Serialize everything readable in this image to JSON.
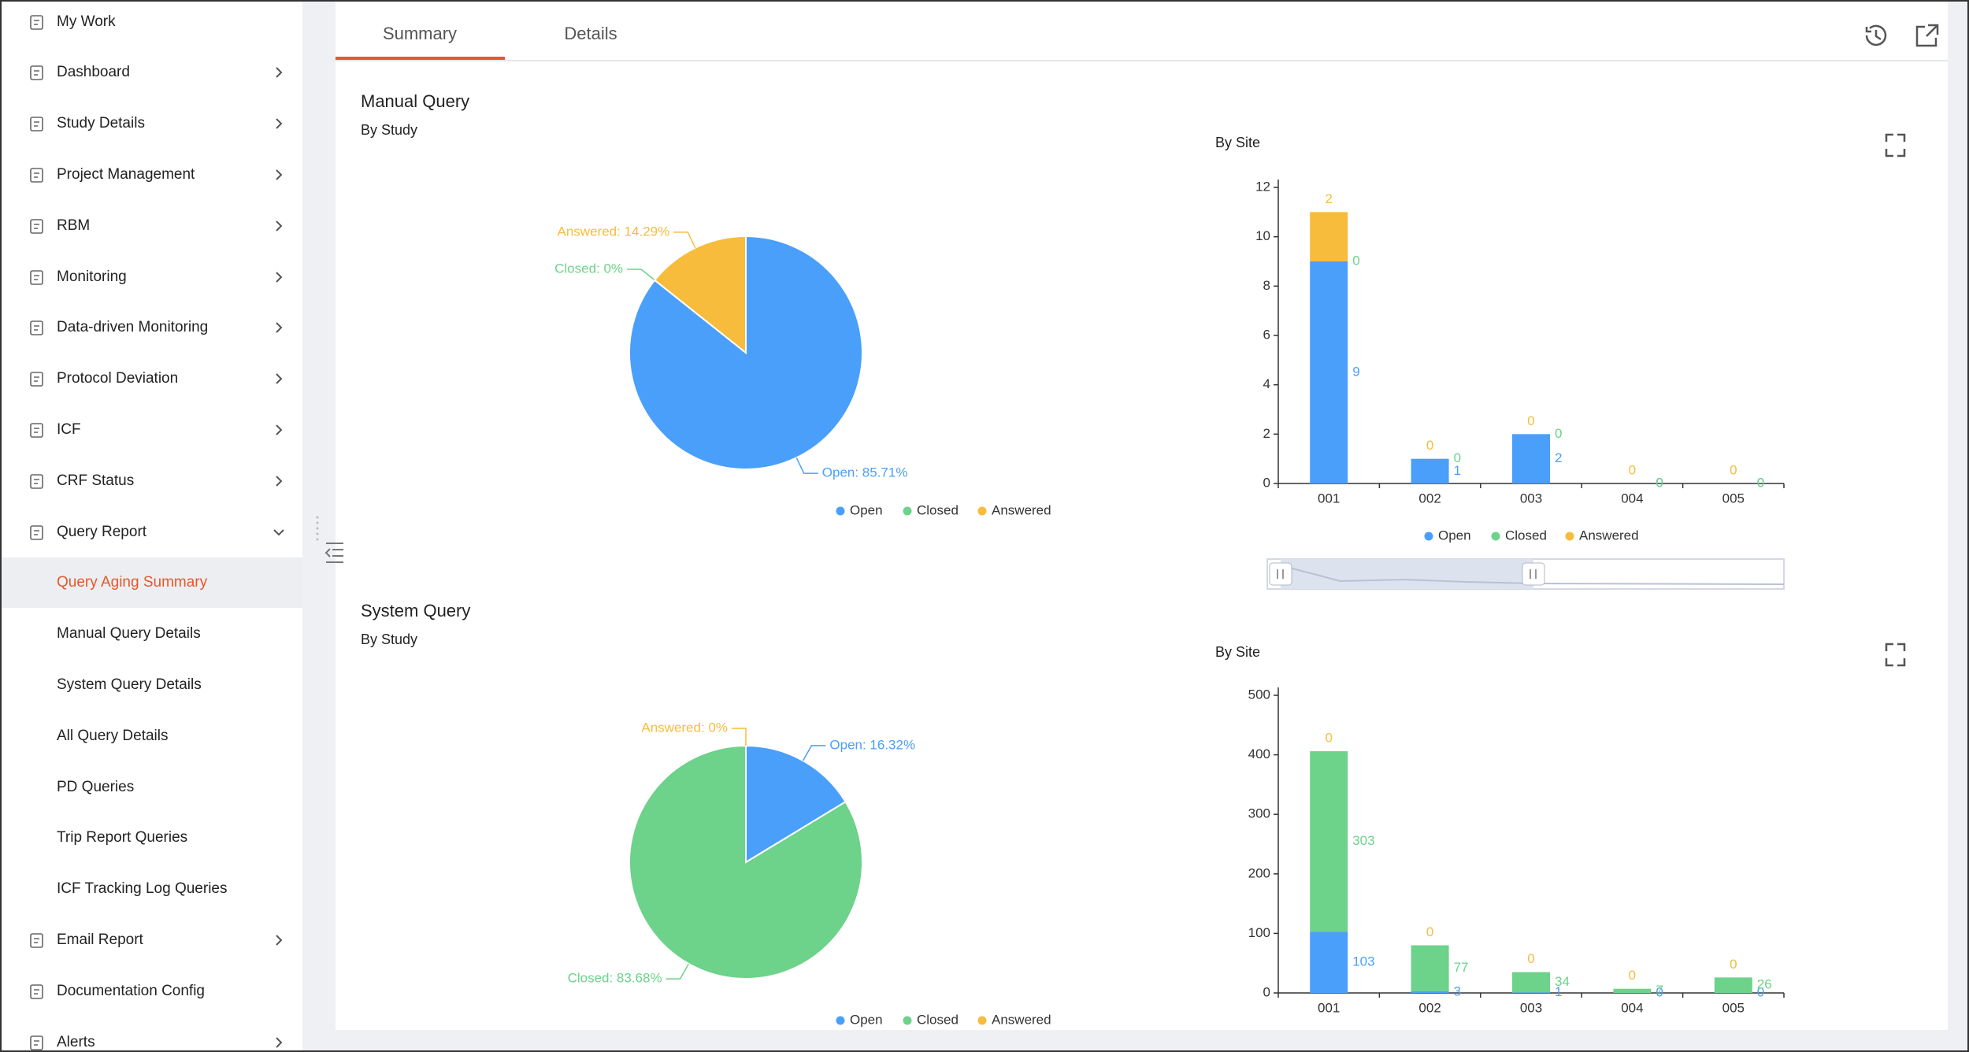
{
  "sidebar": {
    "items": [
      "My Work",
      "Dashboard",
      "Study Details",
      "Project Management",
      "RBM",
      "Monitoring",
      "Data-driven Monitoring",
      "Protocol Deviation",
      "ICF",
      "CRF Status",
      "Query Report",
      "Query Aging Summary",
      "Manual Query Details",
      "System Query Details",
      "All Query Details",
      "PD Queries",
      "Trip Report Queries",
      "ICF Tracking Log Queries",
      "Email Report",
      "Documentation Config",
      "Alerts"
    ]
  },
  "tabs": [
    "Summary",
    "Details"
  ],
  "sections": [
    "Manual Query",
    "System Query"
  ],
  "chart_data": [
    {
      "type": "pie",
      "title": "By Study",
      "categories": [
        "Open",
        "Closed",
        "Answered"
      ],
      "values": [
        85.71,
        0,
        14.29
      ],
      "value_labels": [
        "Open: 85.71%",
        "Closed: 0%",
        "Answered: 14.29%"
      ],
      "colors": [
        "#4a9ffa",
        "#6dd28a",
        "#f7bc3c"
      ]
    },
    {
      "type": "bar",
      "stacked": true,
      "title": "By Site",
      "categories": [
        "001",
        "002",
        "003",
        "004",
        "005"
      ],
      "series": [
        {
          "name": "Open",
          "color": "#4a9ffa",
          "values": [
            9,
            1,
            2,
            0,
            0
          ]
        },
        {
          "name": "Closed",
          "color": "#6dd28a",
          "values": [
            0,
            0,
            0,
            0,
            0
          ]
        },
        {
          "name": "Answered",
          "color": "#f7bc3c",
          "values": [
            2,
            0,
            0,
            0,
            0
          ]
        }
      ],
      "ylim": [
        0,
        12
      ],
      "yticks": [
        0,
        2,
        4,
        6,
        8,
        10,
        12
      ]
    },
    {
      "type": "pie",
      "title": "By Study",
      "categories": [
        "Open",
        "Closed",
        "Answered"
      ],
      "values": [
        16.32,
        83.68,
        0
      ],
      "value_labels": [
        "Open: 16.32%",
        "Closed: 83.68%",
        "Answered: 0%"
      ],
      "colors": [
        "#4a9ffa",
        "#6dd28a",
        "#f7bc3c"
      ]
    },
    {
      "type": "bar",
      "stacked": true,
      "title": "By Site",
      "categories": [
        "001",
        "002",
        "003",
        "004",
        "005"
      ],
      "series": [
        {
          "color": "#4a9ffa",
          "values": [
            103,
            3,
            1,
            0,
            0
          ]
        },
        {
          "color": "#6dd28a",
          "values": [
            303,
            77,
            34,
            7,
            26
          ]
        },
        {
          "color": "#f7bc3c",
          "values": [
            0,
            0,
            0,
            0,
            0
          ]
        }
      ],
      "ylim": [
        0,
        500
      ],
      "yticks": [
        0,
        100,
        200,
        300,
        400,
        500
      ]
    }
  ]
}
